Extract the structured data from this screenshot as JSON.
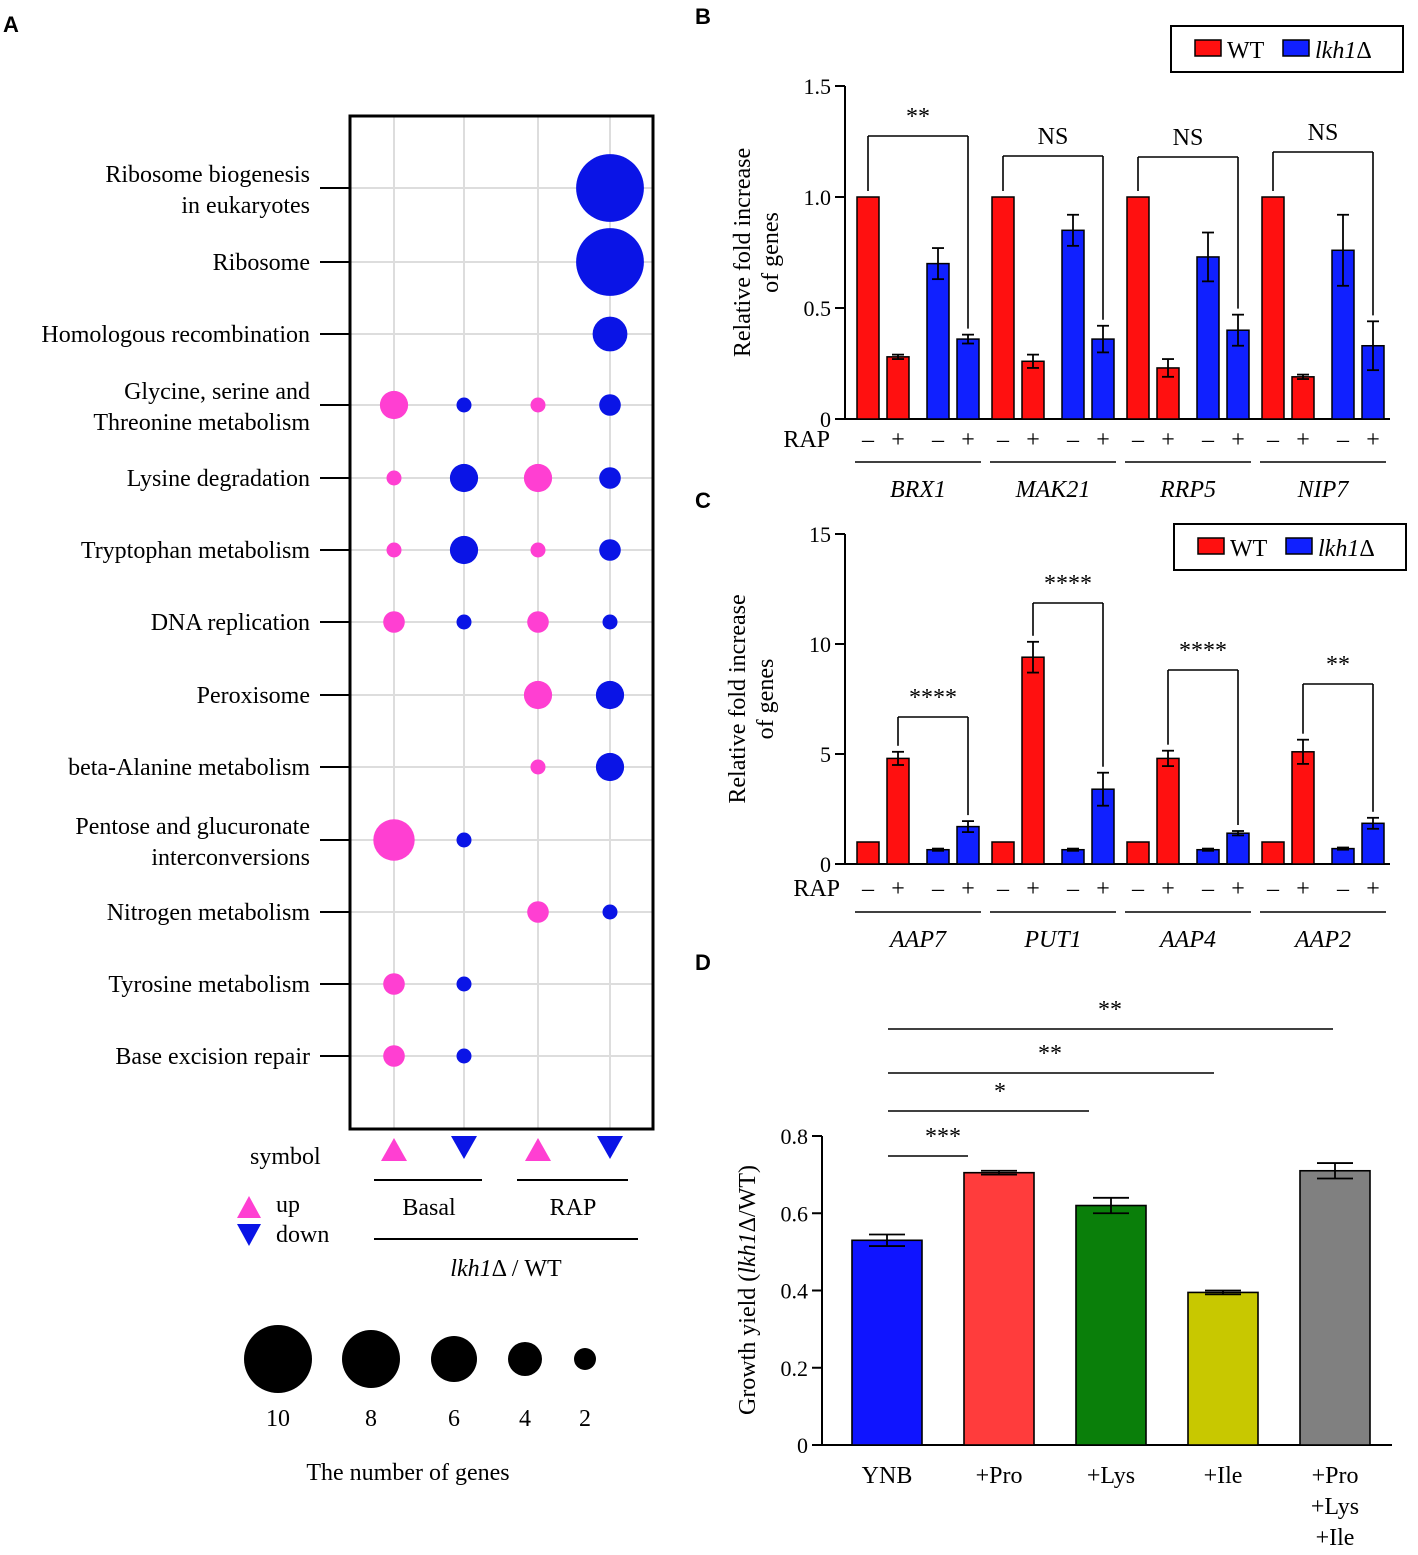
{
  "panels": {
    "A": "A",
    "B": "B",
    "C": "C",
    "D": "D"
  },
  "colors": {
    "up": "#ff3fd2",
    "down": "#0a14e6",
    "wt": "#ff1010",
    "ko": "#1020ff",
    "ynb": "#0f14ff",
    "pro": "#ff3c3c",
    "lys": "#0a7f0a",
    "ile": "#c8c800",
    "all": "#808080"
  },
  "chart_data": [
    {
      "id": "A",
      "type": "scatter",
      "title": "",
      "columns": [
        "Basal up",
        "Basal down",
        "RAP up",
        "RAP down"
      ],
      "column_groups": [
        "Basal",
        "RAP"
      ],
      "group_label_italic": "lkh1",
      "group_label_rest": "Δ / WT",
      "symbol_label": "symbol",
      "legend_up": "up",
      "legend_down": "down",
      "pathways": [
        {
          "name": [
            "Ribosome biogenesis",
            "in eukaryotes"
          ],
          "values": [
            0,
            0,
            0,
            10
          ]
        },
        {
          "name": [
            "Ribosome"
          ],
          "values": [
            0,
            0,
            0,
            10
          ]
        },
        {
          "name": [
            "Homologous recombination"
          ],
          "values": [
            0,
            0,
            0,
            5
          ]
        },
        {
          "name": [
            "Glycine, serine and",
            "Threonine metabolism"
          ],
          "values": [
            4,
            2,
            2,
            3
          ]
        },
        {
          "name": [
            "Lysine degradation"
          ],
          "values": [
            2,
            4,
            4,
            3
          ]
        },
        {
          "name": [
            "Tryptophan metabolism"
          ],
          "values": [
            2,
            4,
            2,
            3
          ]
        },
        {
          "name": [
            "DNA replication"
          ],
          "values": [
            3,
            2,
            3,
            2
          ]
        },
        {
          "name": [
            "Peroxisome"
          ],
          "values": [
            0,
            0,
            4,
            4
          ]
        },
        {
          "name": [
            "beta-Alanine metabolism"
          ],
          "values": [
            0,
            0,
            2,
            4
          ]
        },
        {
          "name": [
            "Pentose and glucuronate",
            "interconversions"
          ],
          "values": [
            6,
            2,
            0,
            0
          ]
        },
        {
          "name": [
            "Nitrogen metabolism"
          ],
          "values": [
            0,
            0,
            3,
            2
          ]
        },
        {
          "name": [
            "Tyrosine metabolism"
          ],
          "values": [
            3,
            2,
            0,
            0
          ]
        },
        {
          "name": [
            "Base excision repair"
          ],
          "values": [
            3,
            2,
            0,
            0
          ]
        }
      ],
      "size_legend": {
        "values": [
          10,
          8,
          6,
          4,
          2
        ],
        "labels": [
          "10",
          "8",
          "6",
          "4",
          "2"
        ],
        "title": "The number of genes"
      }
    },
    {
      "id": "B",
      "type": "bar",
      "ylabel": [
        "Relative fold increase",
        "of genes"
      ],
      "ylim": [
        0,
        1.5
      ],
      "yticks": [
        "0",
        "0.5",
        "1.0",
        "1.5"
      ],
      "yticks_values": [
        0,
        0.5,
        1.0,
        1.5
      ],
      "treatment_label": "RAP",
      "treatment_signs": [
        "–",
        "+",
        "–",
        "+"
      ],
      "legend": [
        "WT",
        "lkh1Δ"
      ],
      "legend_ko_italic": "lkh1",
      "legend_ko_rest": "Δ",
      "genes": [
        {
          "name": "BRX1",
          "values": [
            1.0,
            0.28,
            0.7,
            0.36
          ],
          "errors": [
            0,
            0.01,
            0.07,
            0.02
          ],
          "sig": "**"
        },
        {
          "name": "MAK21",
          "values": [
            1.0,
            0.26,
            0.85,
            0.36
          ],
          "errors": [
            0,
            0.03,
            0.07,
            0.06
          ],
          "sig": "NS"
        },
        {
          "name": "RRP5",
          "values": [
            1.0,
            0.23,
            0.73,
            0.4
          ],
          "errors": [
            0,
            0.04,
            0.11,
            0.07
          ],
          "sig": "NS"
        },
        {
          "name": "NIP7",
          "values": [
            1.0,
            0.19,
            0.76,
            0.33
          ],
          "errors": [
            0,
            0.01,
            0.16,
            0.11
          ],
          "sig": "NS"
        }
      ]
    },
    {
      "id": "C",
      "type": "bar",
      "ylabel": [
        "Relative fold increase",
        "of genes"
      ],
      "ylim": [
        0,
        15
      ],
      "yticks": [
        "0",
        "5",
        "10",
        "15"
      ],
      "yticks_values": [
        0,
        5,
        10,
        15
      ],
      "treatment_label": "RAP",
      "treatment_signs": [
        "–",
        "+",
        "–",
        "+"
      ],
      "legend": [
        "WT",
        "lkh1Δ"
      ],
      "legend_ko_italic": "lkh1",
      "legend_ko_rest": "Δ",
      "genes": [
        {
          "name": "AAP7",
          "values": [
            1.0,
            4.8,
            0.65,
            1.7
          ],
          "errors": [
            0,
            0.3,
            0.05,
            0.25
          ],
          "sig": "****"
        },
        {
          "name": "PUT1",
          "values": [
            1.0,
            9.4,
            0.65,
            3.4
          ],
          "errors": [
            0,
            0.7,
            0.05,
            0.75
          ],
          "sig": "****"
        },
        {
          "name": "AAP4",
          "values": [
            1.0,
            4.8,
            0.65,
            1.4
          ],
          "errors": [
            0,
            0.35,
            0.05,
            0.1
          ],
          "sig": "****"
        },
        {
          "name": "AAP2",
          "values": [
            1.0,
            5.1,
            0.7,
            1.85
          ],
          "errors": [
            0,
            0.55,
            0.05,
            0.25
          ],
          "sig": "**"
        }
      ]
    },
    {
      "id": "D",
      "type": "bar",
      "ylabel_pre": "Growth yield (",
      "ylabel_italic": "lkh1",
      "ylabel_post": "Δ/WT)",
      "ylim": [
        0,
        0.8
      ],
      "yticks": [
        "0",
        "0.2",
        "0.4",
        "0.6",
        "0.8"
      ],
      "yticks_values": [
        0,
        0.2,
        0.4,
        0.6,
        0.8
      ],
      "categories": [
        [
          "YNB"
        ],
        [
          "+Pro"
        ],
        [
          "+Lys"
        ],
        [
          "+Ile"
        ],
        [
          "+Pro",
          "+Lys",
          "+Ile"
        ]
      ],
      "values": [
        0.53,
        0.705,
        0.62,
        0.395,
        0.71
      ],
      "errors": [
        0.015,
        0.005,
        0.02,
        0.005,
        0.02
      ],
      "significance": [
        {
          "label": "***",
          "to": 1
        },
        {
          "label": "*",
          "to": 2
        },
        {
          "label": "**",
          "to": 3
        },
        {
          "label": "**",
          "to": 4
        }
      ]
    }
  ]
}
